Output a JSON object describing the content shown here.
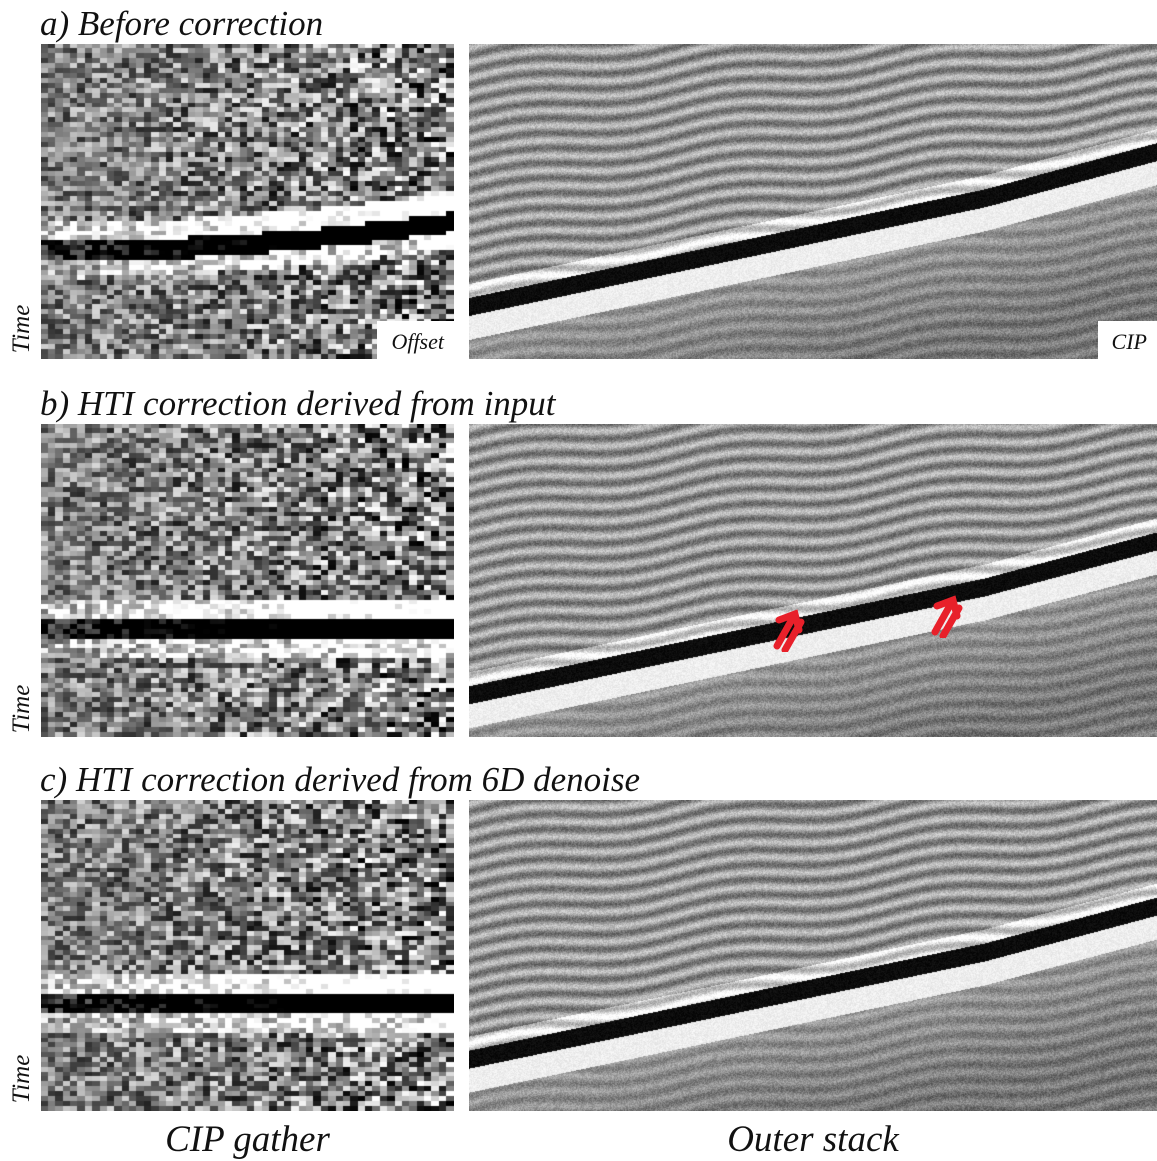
{
  "rows": [
    {
      "id": "a",
      "title": "a) Before correction",
      "offset_label": "Offset",
      "cip_label": "CIP",
      "time_label": "Time"
    },
    {
      "id": "b",
      "title": "b) HTI correction derived from input",
      "time_label": "Time"
    },
    {
      "id": "c",
      "title": "c) HTI correction derived from 6D denoise",
      "time_label": "Time"
    }
  ],
  "bottom": {
    "left": "CIP gather",
    "right": "Outer stack"
  },
  "annotation_color": "#e8202a"
}
